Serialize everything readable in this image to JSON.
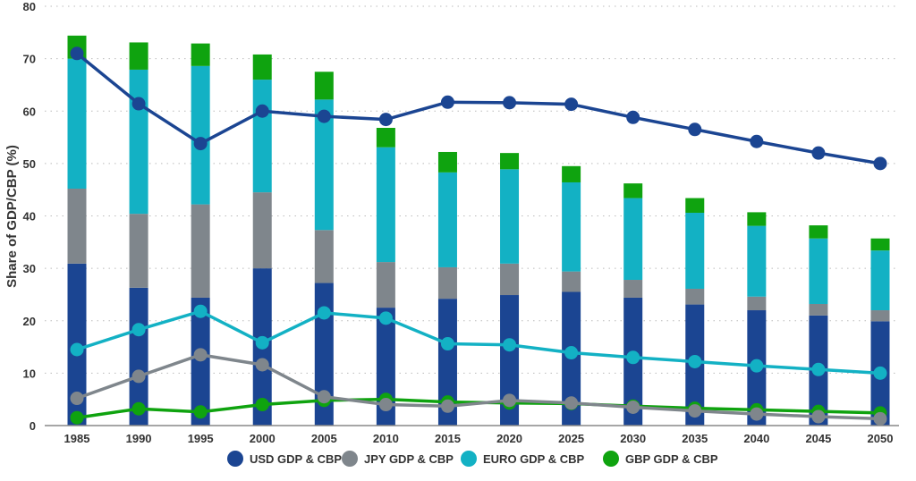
{
  "chart_data": {
    "type": "bar+line",
    "title": "",
    "xlabel": "",
    "ylabel": "Share of GDP/CBP (%)",
    "ylim": [
      0,
      80
    ],
    "yticks": [
      0,
      10,
      20,
      30,
      40,
      50,
      60,
      70,
      80
    ],
    "grid": true,
    "legend_placement": "bottom",
    "categories": [
      "1985",
      "1990",
      "1995",
      "2000",
      "2005",
      "2010",
      "2015",
      "2020",
      "2025",
      "2030",
      "2035",
      "2040",
      "2045",
      "2050"
    ],
    "stacked_bars": [
      {
        "color": "#1b4592",
        "values": [
          30.9,
          26.3,
          24.4,
          30.0,
          27.2,
          22.5,
          24.2,
          24.9,
          25.5,
          24.4,
          23.1,
          22.0,
          21.0,
          19.9
        ]
      },
      {
        "color": "#7f868c",
        "values": [
          14.3,
          14.1,
          17.8,
          14.5,
          10.1,
          8.7,
          6.0,
          6.0,
          3.9,
          3.4,
          3.0,
          2.6,
          2.2,
          2.1
        ]
      },
      {
        "color": "#13b1c4",
        "values": [
          24.8,
          27.5,
          26.4,
          21.5,
          24.9,
          21.9,
          18.1,
          18.0,
          17.0,
          15.6,
          14.5,
          13.5,
          12.5,
          11.4
        ]
      },
      {
        "color": "#0fa30f",
        "values": [
          4.4,
          5.2,
          4.3,
          4.8,
          5.3,
          3.7,
          3.9,
          3.1,
          3.1,
          2.8,
          2.8,
          2.6,
          2.5,
          2.3
        ]
      }
    ],
    "series": [
      {
        "name": "USD GDP & CBP",
        "color": "#1b4592",
        "values": [
          71.0,
          61.4,
          53.8,
          60.0,
          59.0,
          58.4,
          61.7,
          61.6,
          61.3,
          58.8,
          56.5,
          54.2,
          52.0,
          50.0
        ]
      },
      {
        "name": "JPY GDP & CBP",
        "color": "#7f868c",
        "values": [
          5.2,
          9.4,
          13.5,
          11.6,
          5.5,
          4.0,
          3.7,
          4.8,
          4.3,
          3.5,
          2.8,
          2.2,
          1.7,
          1.3
        ]
      },
      {
        "name": "EURO GDP & CBP",
        "color": "#13b1c4",
        "values": [
          14.5,
          18.3,
          21.8,
          15.8,
          21.5,
          20.5,
          15.6,
          15.4,
          13.9,
          13.0,
          12.2,
          11.4,
          10.7,
          10.0
        ]
      },
      {
        "name": "GBP GDP & CBP",
        "color": "#0fa30f",
        "values": [
          1.5,
          3.2,
          2.6,
          4.0,
          4.8,
          5.0,
          4.5,
          4.3,
          4.2,
          3.7,
          3.3,
          3.0,
          2.7,
          2.4
        ]
      }
    ]
  }
}
